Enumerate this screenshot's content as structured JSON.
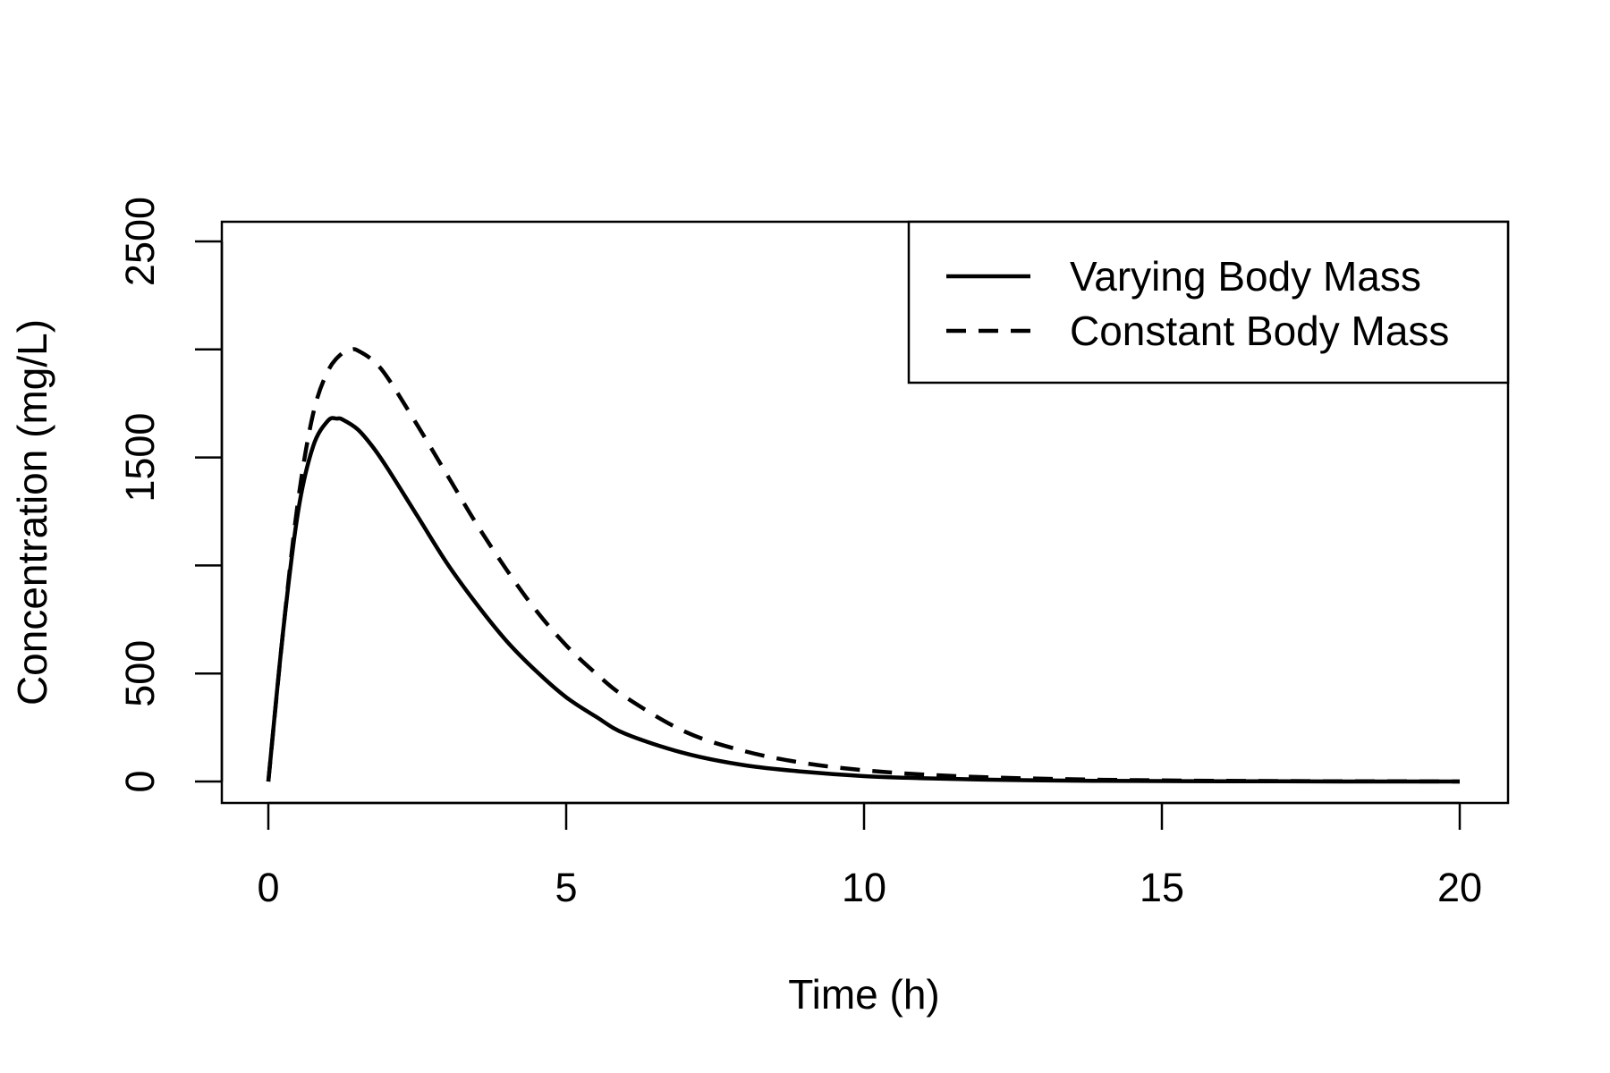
{
  "chart_data": {
    "type": "line",
    "xlabel": "Time (h)",
    "ylabel": "Concentration (mg/L)",
    "xlim": [
      0,
      20
    ],
    "ylim": [
      0,
      2500
    ],
    "x_ticks": [
      0,
      5,
      10,
      15,
      20
    ],
    "y_ticks": [
      0,
      500,
      1000,
      1500,
      2000,
      2500
    ],
    "y_tick_labels": [
      "0",
      "500",
      "",
      "1500",
      "",
      "2500"
    ],
    "grid": false,
    "legend_position": "top-right",
    "legend_entries": [
      "Varying Body Mass",
      "Constant Body Mass"
    ],
    "series": [
      {
        "name": "Varying Body Mass",
        "style": "solid",
        "x": [
          0,
          0.25,
          0.5,
          0.75,
          1.0,
          1.15,
          1.25,
          1.5,
          1.75,
          2.0,
          2.5,
          3.0,
          3.5,
          4.0,
          4.5,
          5.0,
          5.5,
          6.0,
          7.0,
          8.0,
          9.0,
          10.0,
          11.0,
          12.0,
          13.0,
          14.0,
          15.0,
          16.0,
          17.0,
          18.0,
          19.0,
          20.0
        ],
        "values": [
          0,
          700,
          1250,
          1550,
          1670,
          1680,
          1675,
          1630,
          1550,
          1450,
          1230,
          1010,
          820,
          650,
          510,
          390,
          300,
          220,
          130,
          75,
          45,
          25,
          15,
          9,
          5,
          3,
          2,
          1,
          1,
          0,
          0,
          0
        ]
      },
      {
        "name": "Constant Body Mass",
        "style": "dashed",
        "x": [
          0,
          0.25,
          0.5,
          0.75,
          1.0,
          1.25,
          1.4,
          1.5,
          1.75,
          2.0,
          2.5,
          3.0,
          3.5,
          4.0,
          4.5,
          5.0,
          5.5,
          6.0,
          7.0,
          8.0,
          9.0,
          10.0,
          11.0,
          12.0,
          13.0,
          14.0,
          15.0,
          16.0,
          17.0,
          18.0,
          19.0,
          20.0
        ],
        "values": [
          0,
          700,
          1300,
          1700,
          1900,
          1985,
          2000,
          1995,
          1950,
          1870,
          1650,
          1420,
          1190,
          980,
          790,
          630,
          500,
          390,
          230,
          140,
          85,
          52,
          32,
          20,
          13,
          8,
          5,
          3,
          2,
          1,
          1,
          0
        ]
      }
    ]
  }
}
